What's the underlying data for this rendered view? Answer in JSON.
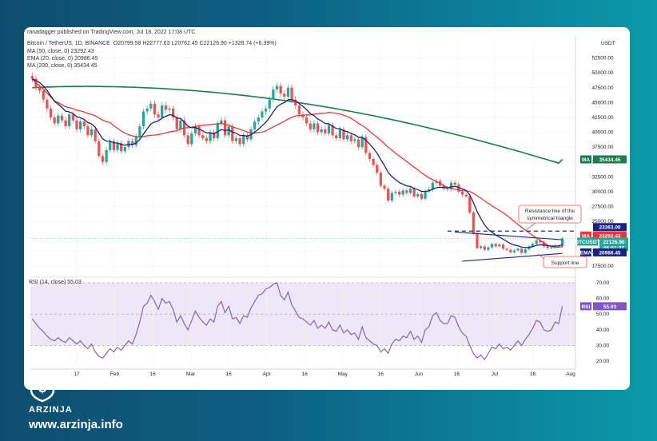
{
  "header": {
    "publisher": "ranadagger published on TradingView.com, Jul 18, 2022 17:08 UTC",
    "symbol_line": "Bitcoin / TetherUS, 1D, BINANCE",
    "ohlc": "O20799.58  H22777.63  L20762.45  C22126.90  +1328.74 (+6.39%)",
    "ma50": "MA (50, close, 0)  23292.43",
    "ema20": "EMA (20, close, 0)  20986.45",
    "ma200": "MA (200, close, 0)  35434.45"
  },
  "axis": {
    "unit": "USDT",
    "price_ticks": [
      "52500.00",
      "50000.00",
      "47500.00",
      "45000.00",
      "42500.00",
      "40000.00",
      "37500.00",
      "35000.00",
      "32500.00",
      "30000.00",
      "27500.00",
      "25000.00",
      "22500.00",
      "20000.00",
      "17500.00"
    ],
    "rsi_ticks": [
      "70.00",
      "60.00",
      "50.00",
      "40.00",
      "30.00",
      "20.00"
    ],
    "x_labels": [
      "17",
      "Feb",
      "16",
      "Mar",
      "16",
      "Apr",
      "16",
      "May",
      "16",
      "Jun",
      "16",
      "Jul",
      "16",
      "Aug"
    ]
  },
  "tags": {
    "ma200": {
      "label": "MA",
      "value": "35434.45"
    },
    "level": {
      "value": "23363.00"
    },
    "ma50": {
      "label": "MA",
      "value": "23292.43"
    },
    "price": {
      "label": "BTCUSDT",
      "value": "22126.90",
      "time": "06:51:27"
    },
    "ema": {
      "label": "EMA",
      "value": "20986.45"
    },
    "rsi": {
      "label": "RSI",
      "value": "55.03"
    }
  },
  "annotations": {
    "resistance": [
      "Resistance line of the",
      "symmetrical triangle"
    ],
    "support": "Support line"
  },
  "rsi_panel": {
    "label": "RSI (14, close)  55.03"
  },
  "brand": {
    "name": "ARZINJA",
    "url": "www.arzinja.info"
  },
  "colors": {
    "up": "#26a69a",
    "down": "#ef5350",
    "ma50": "#e53935",
    "ema20": "#1a237e",
    "ma200": "#1b7d4f",
    "rsi": "#7e57c2"
  },
  "chart_data": {
    "type": "candlestick",
    "price_range": [
      16000,
      55000
    ],
    "rsi_range": [
      15,
      72
    ],
    "price_close": [
      49000,
      47500,
      47000,
      45500,
      44000,
      42500,
      41500,
      42800,
      42000,
      41000,
      43000,
      42000,
      40500,
      41800,
      41000,
      39500,
      40500,
      38500,
      36000,
      35000,
      37000,
      38500,
      37000,
      38200,
      36800,
      37500,
      38500,
      37800,
      39200,
      41000,
      43500,
      44000,
      44800,
      43000,
      42500,
      44500,
      43800,
      44000,
      42500,
      40500,
      42000,
      39500,
      38000,
      39800,
      41000,
      39500,
      39000,
      38500,
      40000,
      39000,
      41500,
      42000,
      39500,
      41000,
      38500,
      39000,
      38000,
      39500,
      38800,
      40500,
      41800,
      42500,
      43500,
      44000,
      45500,
      47200,
      47800,
      46500,
      46000,
      47500,
      45500,
      44500,
      43000,
      42500,
      41500,
      40500,
      41500,
      40000,
      40500,
      39800,
      41200,
      39500,
      39000,
      40500,
      38800,
      39500,
      38500,
      38800,
      37500,
      39200,
      36500,
      35500,
      34500,
      33200,
      31000,
      30500,
      28500,
      29800,
      30000,
      29500,
      30200,
      29800,
      30500,
      29200,
      29600,
      28800,
      30100,
      30400,
      31500,
      31800,
      31000,
      30500,
      30400,
      31500,
      31200,
      30000,
      29500,
      29200,
      26500,
      23000,
      20500,
      20800,
      20200,
      20600,
      21200,
      20800,
      21100,
      20400,
      20200,
      19800,
      20100,
      20400,
      19700,
      20300,
      20800,
      21200,
      21800,
      21500,
      20800,
      20500,
      20600,
      20900,
      20800,
      22126.9
    ],
    "rsi": [
      47,
      44,
      41,
      39,
      36,
      34,
      33,
      35,
      33,
      32,
      35,
      33,
      31,
      33,
      30,
      28,
      31,
      26,
      23,
      22,
      25,
      28,
      26,
      29,
      27,
      30,
      33,
      31,
      37,
      45,
      55,
      57,
      62,
      58,
      53,
      60,
      57,
      58,
      53,
      45,
      49,
      44,
      40,
      46,
      52,
      48,
      45,
      43,
      47,
      45,
      55,
      58,
      51,
      55,
      47,
      48,
      44,
      49,
      48,
      54,
      58,
      62,
      63,
      66,
      67,
      69,
      70,
      62,
      59,
      64,
      56,
      52,
      48,
      47,
      45,
      43,
      46,
      41,
      43,
      41,
      45,
      40,
      39,
      43,
      38,
      40,
      37,
      38,
      34,
      42,
      35,
      33,
      31,
      30,
      26,
      28,
      25,
      31,
      34,
      33,
      36,
      35,
      39,
      34,
      36,
      32,
      40,
      42,
      49,
      51,
      46,
      44,
      44,
      49,
      48,
      42,
      38,
      36,
      30,
      25,
      22,
      24,
      21,
      25,
      29,
      28,
      31,
      28,
      29,
      27,
      30,
      33,
      30,
      34,
      37,
      41,
      46,
      45,
      40,
      39,
      40,
      45,
      44,
      55.03
    ]
  }
}
